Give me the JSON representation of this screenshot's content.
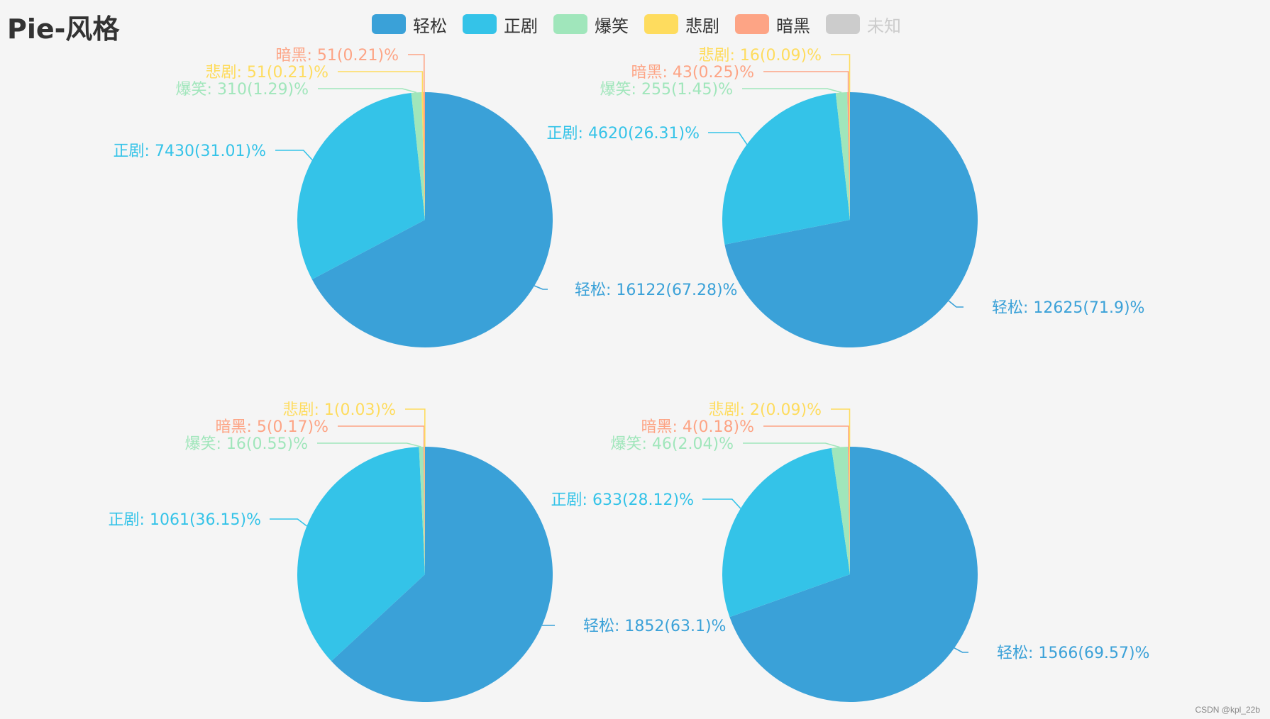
{
  "title": "Pie-风格",
  "watermark": "CSDN @kpl_22b",
  "legend": [
    {
      "name": "轻松",
      "color": "#3aa1d8"
    },
    {
      "name": "正剧",
      "color": "#34c3e8"
    },
    {
      "name": "爆笑",
      "color": "#a0e6bb"
    },
    {
      "name": "悲剧",
      "color": "#fedc5e"
    },
    {
      "name": "暗黑",
      "color": "#fda485"
    },
    {
      "name": "未知",
      "color": "#cccccc"
    }
  ],
  "chart_data": [
    {
      "type": "pie",
      "slices": [
        {
          "name": "轻松",
          "value": 16122,
          "label": "轻松: 16122(67.28)%"
        },
        {
          "name": "正剧",
          "value": 7430,
          "label": "正剧: 7430(31.01)%"
        },
        {
          "name": "爆笑",
          "value": 310,
          "label": "爆笑: 310(1.29)%"
        },
        {
          "name": "悲剧",
          "value": 51,
          "label": "悲剧: 51(0.21)%"
        },
        {
          "name": "暗黑",
          "value": 51,
          "label": "暗黑: 51(0.21)%"
        }
      ]
    },
    {
      "type": "pie",
      "slices": [
        {
          "name": "轻松",
          "value": 12625,
          "label": "轻松: 12625(71.9)%"
        },
        {
          "name": "正剧",
          "value": 4620,
          "label": "正剧: 4620(26.31)%"
        },
        {
          "name": "爆笑",
          "value": 255,
          "label": "爆笑: 255(1.45)%"
        },
        {
          "name": "暗黑",
          "value": 43,
          "label": "暗黑: 43(0.25)%"
        },
        {
          "name": "悲剧",
          "value": 16,
          "label": "悲剧: 16(0.09)%"
        }
      ]
    },
    {
      "type": "pie",
      "slices": [
        {
          "name": "轻松",
          "value": 1852,
          "label": "轻松: 1852(63.1)%"
        },
        {
          "name": "正剧",
          "value": 1061,
          "label": "正剧: 1061(36.15)%"
        },
        {
          "name": "爆笑",
          "value": 16,
          "label": "爆笑: 16(0.55)%"
        },
        {
          "name": "暗黑",
          "value": 5,
          "label": "暗黑: 5(0.17)%"
        },
        {
          "name": "悲剧",
          "value": 1,
          "label": "悲剧: 1(0.03)%"
        }
      ]
    },
    {
      "type": "pie",
      "slices": [
        {
          "name": "轻松",
          "value": 1566,
          "label": "轻松: 1566(69.57)%"
        },
        {
          "name": "正剧",
          "value": 633,
          "label": "正剧: 633(28.12)%"
        },
        {
          "name": "爆笑",
          "value": 46,
          "label": "爆笑: 46(2.04)%"
        },
        {
          "name": "暗黑",
          "value": 4,
          "label": "暗黑: 4(0.18)%"
        },
        {
          "name": "悲剧",
          "value": 2,
          "label": "悲剧: 2(0.09)%"
        }
      ]
    }
  ]
}
